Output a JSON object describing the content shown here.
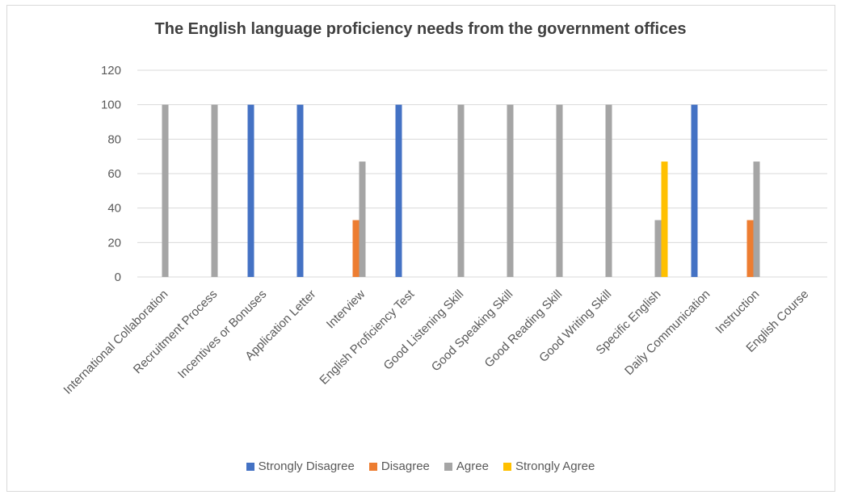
{
  "chart_data": {
    "type": "bar",
    "title": "The English language proficiency needs from the government offices",
    "xlabel": "",
    "ylabel": "",
    "ylim": [
      0,
      120
    ],
    "yticks": [
      0,
      20,
      40,
      60,
      80,
      100,
      120
    ],
    "grid": true,
    "legend_position": "bottom",
    "categories": [
      "International Collaboration",
      "Recruitment Process",
      "Incentives or Bonuses",
      "Application Letter",
      "Interview",
      "English Proficiency Test",
      "Good Listening Skill",
      "Good Speaking Skill",
      "Good Reading Skill",
      "Good Writing Skill",
      "Specific English",
      "Daily Communication",
      "Instruction",
      "English Course"
    ],
    "series": [
      {
        "name": "Strongly Disagree",
        "color": "#4472c4",
        "values": [
          0,
          0,
          100,
          100,
          0,
          100,
          0,
          0,
          0,
          0,
          0,
          100,
          0,
          0
        ]
      },
      {
        "name": "Disagree",
        "color": "#ed7d31",
        "values": [
          0,
          0,
          0,
          0,
          33,
          0,
          0,
          0,
          0,
          0,
          0,
          0,
          33,
          0
        ]
      },
      {
        "name": "Agree",
        "color": "#a5a5a5",
        "values": [
          100,
          100,
          0,
          0,
          67,
          0,
          100,
          100,
          100,
          100,
          33,
          0,
          67,
          0
        ]
      },
      {
        "name": "Strongly Agree",
        "color": "#ffc000",
        "values": [
          0,
          0,
          0,
          0,
          0,
          0,
          0,
          0,
          0,
          0,
          67,
          0,
          0,
          0
        ]
      }
    ]
  }
}
